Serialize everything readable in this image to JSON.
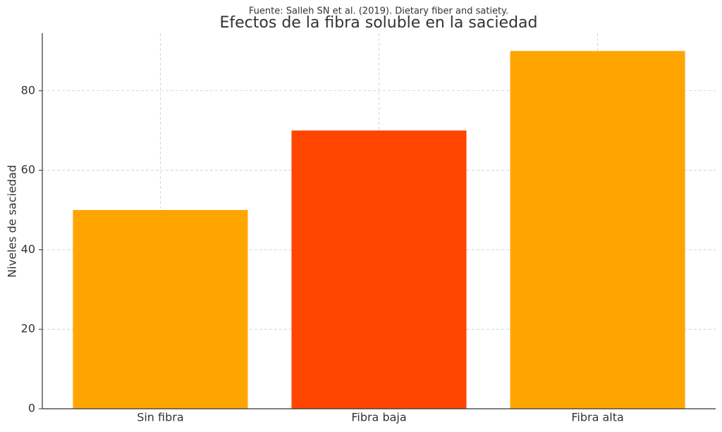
{
  "chart_data": {
    "type": "bar",
    "title": "Efectos de la fibra soluble en la saciedad",
    "subtitle": "Fuente: Salleh SN et al. (2019). Dietary fiber and satiety.",
    "y_label": "Niveles de saciedad",
    "categories": [
      "Sin fibra",
      "Fibra baja",
      "Fibra alta"
    ],
    "values": [
      50,
      70,
      90
    ],
    "colors": [
      "#ffa500",
      "#ff4500",
      "#ffa500"
    ],
    "ylim": [
      0,
      94.5
    ],
    "yticks": [
      0,
      20,
      40,
      60,
      80
    ],
    "grid": true
  }
}
